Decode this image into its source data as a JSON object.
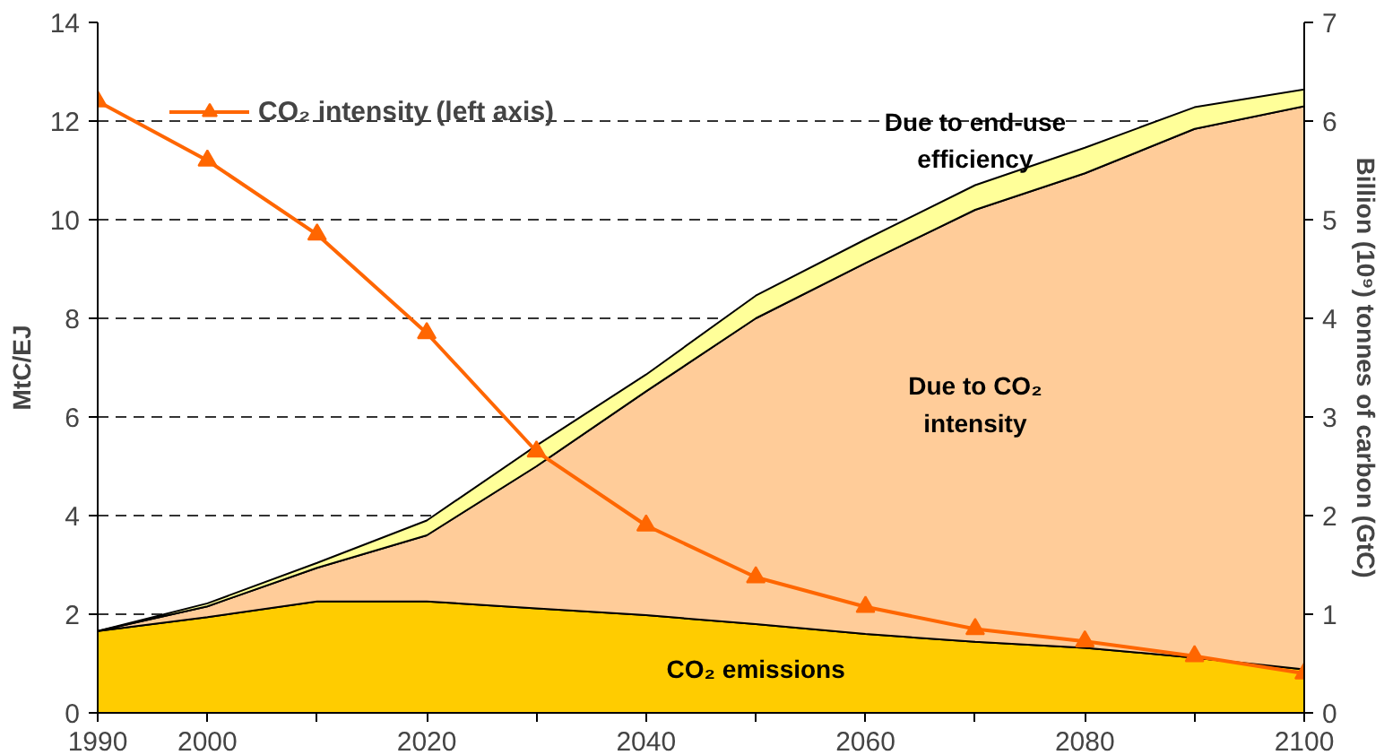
{
  "chart_data": {
    "type": "area",
    "stacked": true,
    "ylabel": "MtC/EJ",
    "y2label": "Billion (10⁹) tonnes of carbon (GtC)",
    "x": [
      1990,
      2000,
      2010,
      2020,
      2030,
      2040,
      2050,
      2060,
      2070,
      2080,
      2090,
      2100
    ],
    "xlim": [
      1990,
      2100
    ],
    "xticks": [
      1990,
      2000,
      {
        "value": 2010,
        "label": null
      },
      2020,
      {
        "value": 2030,
        "label": null
      },
      2040,
      {
        "value": 2050,
        "label": null
      },
      2060,
      {
        "value": 2070,
        "label": null
      },
      2080,
      {
        "value": 2090,
        "label": null
      },
      2100
    ],
    "ylim": [
      0,
      14
    ],
    "yticks": [
      0,
      2,
      4,
      6,
      8,
      10,
      12,
      14
    ],
    "y2lim": [
      0,
      7
    ],
    "y2ticks": [
      0,
      1,
      2,
      3,
      4,
      5,
      6,
      7
    ],
    "grid": "y",
    "legend": "top left",
    "series": [
      {
        "name": "CO₂ emissions",
        "axis": "y2",
        "color": "#ffcc00",
        "values": [
          0.83,
          0.97,
          1.13,
          1.13,
          1.06,
          0.99,
          0.9,
          0.8,
          0.72,
          0.66,
          0.56,
          0.44
        ]
      },
      {
        "name": "Due to CO₂ intensity",
        "axis": "y2",
        "color": "#ffcc99",
        "values": [
          0,
          0.11,
          0.34,
          0.67,
          1.44,
          2.27,
          3.1,
          3.76,
          4.38,
          4.81,
          5.36,
          5.71
        ]
      },
      {
        "name": "Due to end-use efficiency",
        "axis": "y2",
        "color": "#ffff99",
        "values": [
          0,
          0.03,
          0.05,
          0.15,
          0.21,
          0.17,
          0.23,
          0.24,
          0.25,
          0.26,
          0.22,
          0.17
        ]
      },
      {
        "name": "CO₂ intensity (left axis)",
        "type": "line",
        "axis": "y",
        "color": "#ff6600",
        "marker": "triangle",
        "values": [
          12.4,
          11.2,
          9.7,
          7.7,
          5.3,
          3.8,
          2.75,
          2.15,
          1.7,
          1.45,
          1.15,
          0.8
        ]
      }
    ]
  }
}
